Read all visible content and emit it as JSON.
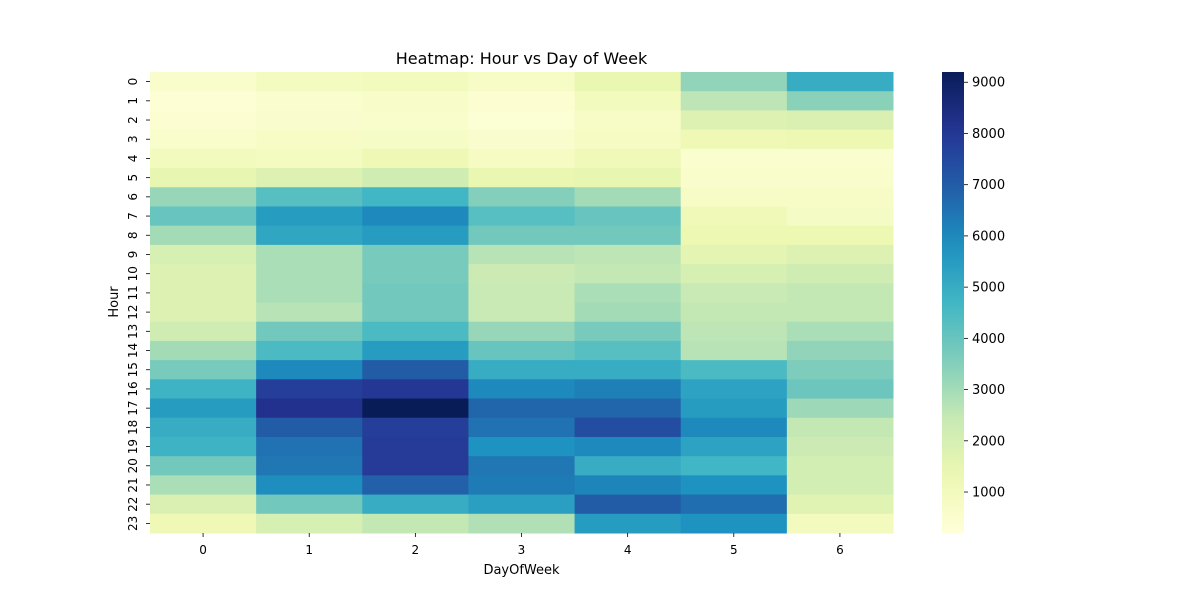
{
  "chart_data": {
    "type": "heatmap",
    "title": "Heatmap: Hour vs Day of Week",
    "xlabel": "DayOfWeek",
    "ylabel": "Hour",
    "x_categories": [
      "0",
      "1",
      "2",
      "3",
      "4",
      "5",
      "6"
    ],
    "y_categories": [
      "0",
      "1",
      "2",
      "3",
      "4",
      "5",
      "6",
      "7",
      "8",
      "9",
      "10",
      "11",
      "12",
      "13",
      "14",
      "15",
      "16",
      "17",
      "18",
      "19",
      "20",
      "21",
      "22",
      "23"
    ],
    "colormap": "YlGnBu",
    "colorbar": {
      "min": 200,
      "max": 9200,
      "ticks": [
        1000,
        2000,
        3000,
        4000,
        5000,
        6000,
        7000,
        8000,
        9000
      ]
    },
    "values": [
      [
        600,
        900,
        950,
        700,
        1400,
        3300,
        5000
      ],
      [
        350,
        500,
        650,
        400,
        950,
        2600,
        3400
      ],
      [
        400,
        550,
        600,
        380,
        700,
        1800,
        1900
      ],
      [
        600,
        700,
        750,
        550,
        850,
        1200,
        1300
      ],
      [
        1000,
        900,
        1200,
        850,
        1100,
        500,
        500
      ],
      [
        1500,
        1800,
        2200,
        1400,
        1500,
        600,
        600
      ],
      [
        3200,
        4300,
        4700,
        3500,
        3000,
        700,
        700
      ],
      [
        4000,
        5500,
        6000,
        4300,
        4000,
        1100,
        800
      ],
      [
        3000,
        5200,
        5500,
        3800,
        3800,
        1300,
        1300
      ],
      [
        2000,
        2900,
        3700,
        2700,
        2600,
        1600,
        1800
      ],
      [
        1800,
        2900,
        3700,
        2300,
        2500,
        2000,
        2200
      ],
      [
        1800,
        2900,
        3800,
        2400,
        2900,
        2400,
        2500
      ],
      [
        1800,
        2700,
        3800,
        2400,
        3000,
        2500,
        2500
      ],
      [
        2200,
        3800,
        4500,
        3200,
        3700,
        2600,
        2900
      ],
      [
        3000,
        4500,
        5500,
        4000,
        4300,
        2700,
        3300
      ],
      [
        3700,
        6000,
        7000,
        5000,
        5000,
        4500,
        3600
      ],
      [
        4800,
        7800,
        8000,
        6000,
        6200,
        5300,
        3900
      ],
      [
        5500,
        8200,
        9200,
        6800,
        6800,
        5500,
        3100
      ],
      [
        5000,
        7000,
        7800,
        6500,
        7400,
        6000,
        2500
      ],
      [
        4800,
        6500,
        7900,
        5800,
        6000,
        5300,
        2300
      ],
      [
        3800,
        6400,
        7900,
        6400,
        5000,
        4700,
        2100
      ],
      [
        2900,
        5900,
        6900,
        6300,
        6100,
        5800,
        2100
      ],
      [
        1900,
        3800,
        5000,
        5400,
        7000,
        6600,
        1700
      ],
      [
        1200,
        2000,
        2500,
        2800,
        5500,
        5800,
        1000
      ]
    ]
  }
}
